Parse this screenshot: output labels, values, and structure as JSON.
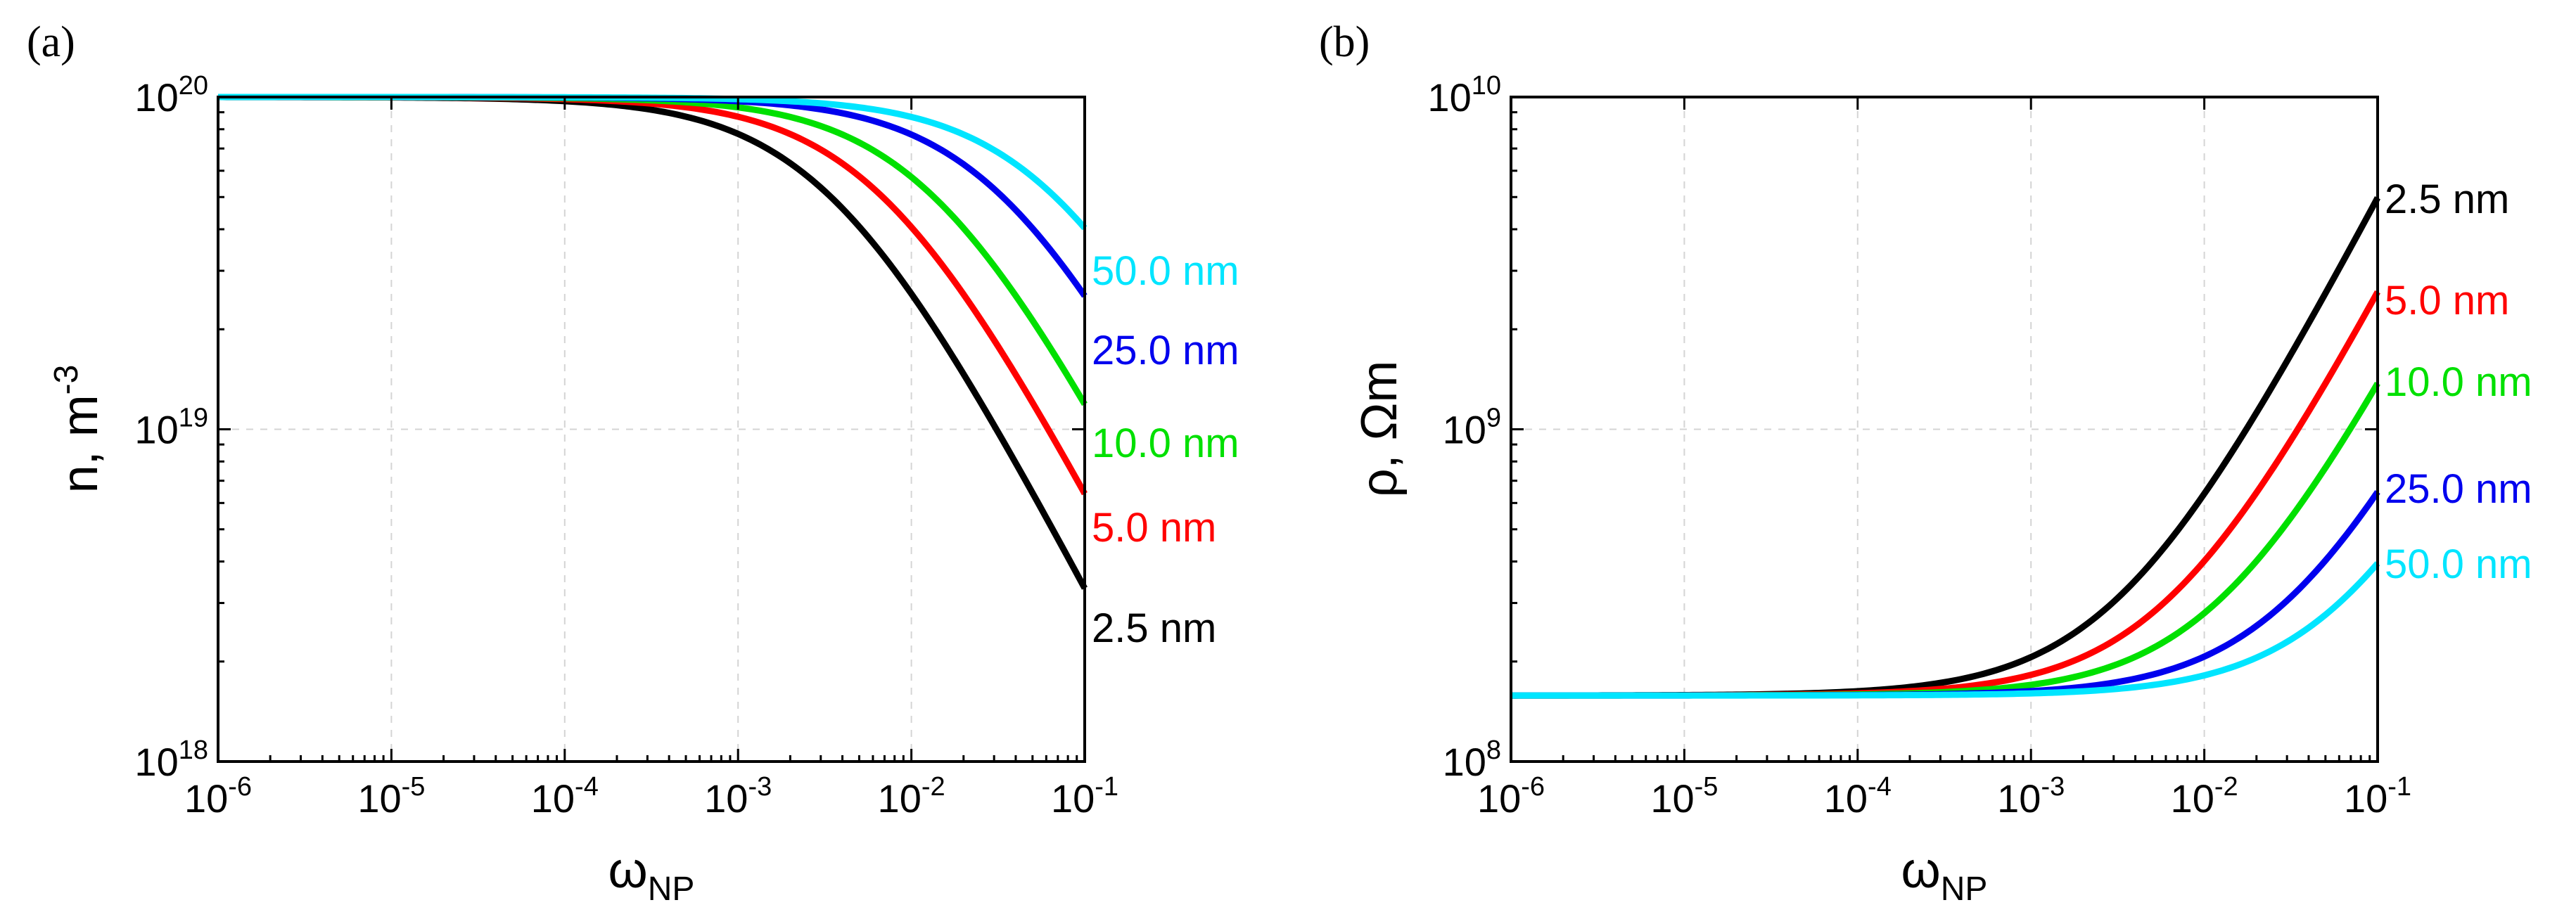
{
  "chart_data": [
    {
      "type": "line",
      "panel": "(a)",
      "xscale": "log",
      "yscale": "log",
      "xlim": [
        1e-06,
        0.1
      ],
      "ylim": [
        1e+18,
        1e+20
      ],
      "xlabel": {
        "main": "ω",
        "sub": "NP"
      },
      "ylabel": {
        "main": "n, m",
        "sup": "-3"
      },
      "xticks": [
        {
          "base": "10",
          "exp": "-6"
        },
        {
          "base": "10",
          "exp": "-5"
        },
        {
          "base": "10",
          "exp": "-4"
        },
        {
          "base": "10",
          "exp": "-3"
        },
        {
          "base": "10",
          "exp": "-2"
        },
        {
          "base": "10",
          "exp": "-1"
        }
      ],
      "yticks": [
        {
          "base": "10",
          "exp": "18"
        },
        {
          "base": "10",
          "exp": "19"
        },
        {
          "base": "10",
          "exp": "20"
        }
      ],
      "grid": true,
      "series": [
        {
          "name": "2.5 nm",
          "color": "#000000",
          "start": 1e+20,
          "k": 291.0,
          "p": 1.0
        },
        {
          "name": "5.0 nm",
          "color": "#ff0000",
          "start": 1e+20,
          "k": 146.3,
          "p": 1.0
        },
        {
          "name": "10.0 nm",
          "color": "#00e000",
          "start": 1e+20,
          "k": 74.1,
          "p": 1.0
        },
        {
          "name": "25.0 nm",
          "color": "#0000ee",
          "start": 1e+20,
          "k": 29.7,
          "p": 1.0
        },
        {
          "name": "50.0 nm",
          "color": "#00e5ff",
          "start": 1e+20,
          "k": 14.8,
          "p": 1.0
        }
      ]
    },
    {
      "type": "line",
      "panel": "(b)",
      "xscale": "log",
      "yscale": "log",
      "xlim": [
        1e-06,
        0.1
      ],
      "ylim": [
        100000000.0,
        10000000000.0
      ],
      "xlabel": {
        "main": "ω",
        "sub": "NP"
      },
      "ylabel": {
        "main": "ρ, Ωm"
      },
      "xticks": [
        {
          "base": "10",
          "exp": "-6"
        },
        {
          "base": "10",
          "exp": "-5"
        },
        {
          "base": "10",
          "exp": "-4"
        },
        {
          "base": "10",
          "exp": "-3"
        },
        {
          "base": "10",
          "exp": "-2"
        },
        {
          "base": "10",
          "exp": "-1"
        }
      ],
      "yticks": [
        {
          "base": "10",
          "exp": "8"
        },
        {
          "base": "10",
          "exp": "9"
        },
        {
          "base": "10",
          "exp": "10"
        }
      ],
      "grid": true,
      "series": [
        {
          "name": "2.5 nm",
          "color": "#000000",
          "start": 158000000.0,
          "k": 305.0,
          "p": 1.0
        },
        {
          "name": "5.0 nm",
          "color": "#ff0000",
          "start": 158000000.0,
          "k": 154.0,
          "p": 1.0
        },
        {
          "name": "10.0 nm",
          "color": "#00e000",
          "start": 158000000.0,
          "k": 77.0,
          "p": 1.0
        },
        {
          "name": "25.0 nm",
          "color": "#0000ee",
          "start": 158000000.0,
          "k": 31.0,
          "p": 1.0
        },
        {
          "name": "50.0 nm",
          "color": "#00e5ff",
          "start": 158000000.0,
          "k": 15.0,
          "p": 1.0
        }
      ]
    }
  ]
}
